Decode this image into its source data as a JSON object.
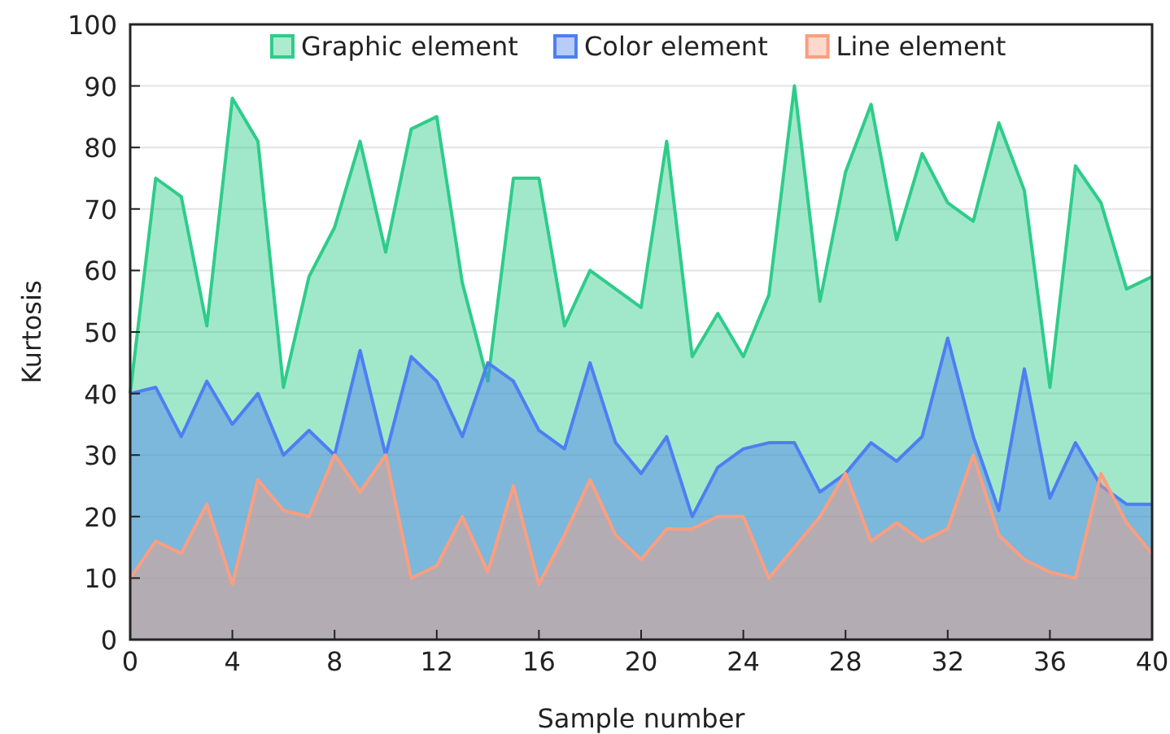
{
  "chart_data": {
    "type": "area",
    "xlabel": "Sample number",
    "ylabel": "Kurtosis",
    "x": [
      0,
      1,
      2,
      3,
      4,
      5,
      6,
      7,
      8,
      9,
      10,
      11,
      12,
      13,
      14,
      15,
      16,
      17,
      18,
      19,
      20,
      21,
      22,
      23,
      24,
      25,
      26,
      27,
      28,
      29,
      30,
      31,
      32,
      33,
      34,
      35,
      36,
      37,
      38,
      39,
      40
    ],
    "series": [
      {
        "name": "Graphic element",
        "color": "#2ecc8a",
        "values": [
          40,
          75,
          72,
          51,
          88,
          81,
          41,
          59,
          67,
          81,
          63,
          83,
          85,
          58,
          42,
          75,
          75,
          51,
          60,
          57,
          54,
          81,
          46,
          53,
          46,
          56,
          90,
          55,
          76,
          87,
          65,
          79,
          71,
          68,
          84,
          73,
          41,
          77,
          71,
          57,
          59
        ]
      },
      {
        "name": "Color element",
        "color": "#4d7ff2",
        "values": [
          40,
          41,
          33,
          42,
          35,
          40,
          30,
          34,
          30,
          47,
          30,
          46,
          42,
          33,
          45,
          42,
          34,
          31,
          45,
          32,
          27,
          33,
          20,
          28,
          31,
          32,
          32,
          24,
          27,
          32,
          29,
          33,
          49,
          33,
          21,
          44,
          23,
          32,
          25,
          22,
          22
        ]
      },
      {
        "name": "Line element",
        "color": "#fb9e80",
        "values": [
          10,
          16,
          14,
          22,
          9,
          26,
          21,
          20,
          30,
          24,
          30,
          10,
          12,
          20,
          11,
          25,
          9,
          17,
          26,
          17,
          13,
          18,
          18,
          20,
          20,
          10,
          15,
          20,
          27,
          16,
          19,
          16,
          18,
          30,
          17,
          13,
          11,
          10,
          27,
          19,
          14
        ]
      }
    ],
    "xlim": [
      0,
      40
    ],
    "xticks": [
      0,
      4,
      8,
      12,
      16,
      20,
      24,
      28,
      32,
      36,
      40
    ],
    "ylim": [
      0,
      100
    ],
    "yticks": [
      0,
      10,
      20,
      30,
      40,
      50,
      60,
      70,
      80,
      90,
      100
    ],
    "grid": "y",
    "legend": "top"
  }
}
